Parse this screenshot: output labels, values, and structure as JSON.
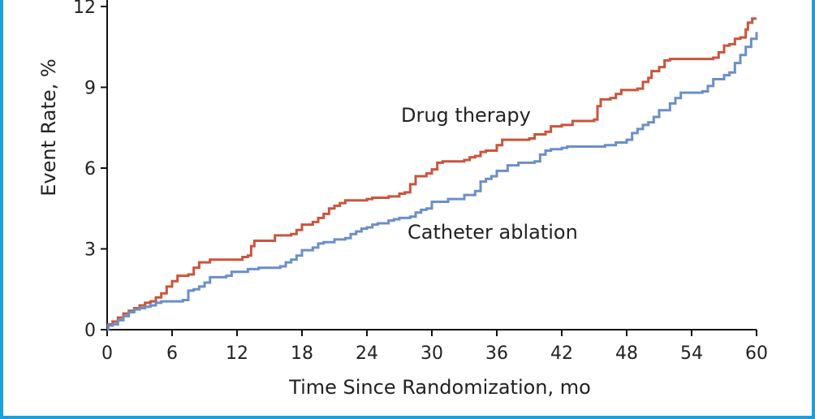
{
  "chart_data": {
    "type": "line",
    "xlabel": "Time Since Randomization, mo",
    "ylabel": "Event Rate, %",
    "xlim": [
      0,
      60
    ],
    "ylim": [
      0,
      12
    ],
    "x_ticks": [
      0,
      6,
      12,
      18,
      24,
      30,
      36,
      42,
      48,
      54,
      60
    ],
    "y_ticks": [
      0,
      3,
      6,
      9,
      12
    ],
    "grid": false,
    "series": [
      {
        "name": "Drug therapy",
        "color": "#c8553d",
        "points": [
          [
            0,
            0
          ],
          [
            0.1,
            0.2
          ],
          [
            0.5,
            0.3
          ],
          [
            1,
            0.45
          ],
          [
            1.5,
            0.6
          ],
          [
            2,
            0.7
          ],
          [
            2.5,
            0.8
          ],
          [
            3,
            0.9
          ],
          [
            3.5,
            1.0
          ],
          [
            4,
            1.05
          ],
          [
            4.5,
            1.2
          ],
          [
            5,
            1.35
          ],
          [
            5.5,
            1.6
          ],
          [
            6,
            1.8
          ],
          [
            6.5,
            2.0
          ],
          [
            7.5,
            2.05
          ],
          [
            8,
            2.3
          ],
          [
            8.5,
            2.5
          ],
          [
            9,
            2.5
          ],
          [
            9.5,
            2.6
          ],
          [
            12,
            2.6
          ],
          [
            12.5,
            2.7
          ],
          [
            13,
            2.75
          ],
          [
            13.3,
            3.1
          ],
          [
            13.6,
            3.3
          ],
          [
            15,
            3.3
          ],
          [
            15.5,
            3.5
          ],
          [
            17,
            3.55
          ],
          [
            17.5,
            3.7
          ],
          [
            18,
            3.9
          ],
          [
            19,
            4.0
          ],
          [
            19.5,
            4.15
          ],
          [
            20,
            4.3
          ],
          [
            20.5,
            4.5
          ],
          [
            21,
            4.6
          ],
          [
            21.5,
            4.7
          ],
          [
            22,
            4.8
          ],
          [
            24,
            4.85
          ],
          [
            24.5,
            4.9
          ],
          [
            26,
            4.95
          ],
          [
            27,
            5.05
          ],
          [
            27.5,
            5.1
          ],
          [
            28,
            5.4
          ],
          [
            28.5,
            5.7
          ],
          [
            29.5,
            5.8
          ],
          [
            30,
            5.95
          ],
          [
            30.5,
            6.2
          ],
          [
            31,
            6.25
          ],
          [
            33,
            6.3
          ],
          [
            33.5,
            6.4
          ],
          [
            34,
            6.45
          ],
          [
            34.5,
            6.6
          ],
          [
            35,
            6.65
          ],
          [
            36,
            6.85
          ],
          [
            36.5,
            7.05
          ],
          [
            39,
            7.1
          ],
          [
            39.5,
            7.25
          ],
          [
            40,
            7.25
          ],
          [
            40.5,
            7.35
          ],
          [
            41,
            7.55
          ],
          [
            42,
            7.6
          ],
          [
            43,
            7.75
          ],
          [
            44,
            7.75
          ],
          [
            45,
            7.8
          ],
          [
            45.3,
            8.3
          ],
          [
            45.6,
            8.55
          ],
          [
            46.5,
            8.6
          ],
          [
            47,
            8.75
          ],
          [
            47.5,
            8.9
          ],
          [
            49,
            8.95
          ],
          [
            49.5,
            9.2
          ],
          [
            50,
            9.35
          ],
          [
            50.3,
            9.6
          ],
          [
            51,
            9.75
          ],
          [
            51.5,
            10.0
          ],
          [
            52,
            10.05
          ],
          [
            56,
            10.1
          ],
          [
            56.5,
            10.3
          ],
          [
            57,
            10.55
          ],
          [
            57.5,
            10.6
          ],
          [
            58,
            10.8
          ],
          [
            58.5,
            10.85
          ],
          [
            59,
            11.15
          ],
          [
            59.2,
            11.4
          ],
          [
            59.6,
            11.55
          ],
          [
            60,
            11.55
          ]
        ]
      },
      {
        "name": "Catheter ablation",
        "color": "#6b8fc7",
        "points": [
          [
            0,
            0
          ],
          [
            0.1,
            0.15
          ],
          [
            0.5,
            0.2
          ],
          [
            1,
            0.35
          ],
          [
            1.5,
            0.5
          ],
          [
            2,
            0.65
          ],
          [
            2.5,
            0.75
          ],
          [
            3,
            0.8
          ],
          [
            3.5,
            0.85
          ],
          [
            4,
            0.9
          ],
          [
            4.5,
            1.0
          ],
          [
            5,
            1.05
          ],
          [
            5.5,
            1.05
          ],
          [
            7,
            1.1
          ],
          [
            7.5,
            1.45
          ],
          [
            8,
            1.5
          ],
          [
            8.5,
            1.6
          ],
          [
            9,
            1.75
          ],
          [
            9.5,
            1.95
          ],
          [
            11,
            2.0
          ],
          [
            11.5,
            2.15
          ],
          [
            13,
            2.25
          ],
          [
            14,
            2.3
          ],
          [
            16,
            2.35
          ],
          [
            16.5,
            2.5
          ],
          [
            17,
            2.6
          ],
          [
            17.5,
            2.75
          ],
          [
            18,
            2.95
          ],
          [
            19,
            3.05
          ],
          [
            19.5,
            3.2
          ],
          [
            20,
            3.25
          ],
          [
            21,
            3.35
          ],
          [
            22,
            3.4
          ],
          [
            22.5,
            3.55
          ],
          [
            23,
            3.65
          ],
          [
            23.5,
            3.75
          ],
          [
            24,
            3.8
          ],
          [
            24.5,
            3.9
          ],
          [
            25,
            3.95
          ],
          [
            26,
            4.05
          ],
          [
            26.5,
            4.1
          ],
          [
            27,
            4.15
          ],
          [
            28,
            4.2
          ],
          [
            28.5,
            4.35
          ],
          [
            29,
            4.45
          ],
          [
            29.5,
            4.5
          ],
          [
            30,
            4.75
          ],
          [
            31,
            4.75
          ],
          [
            31.5,
            4.85
          ],
          [
            33,
            5.0
          ],
          [
            34,
            5.15
          ],
          [
            34.5,
            5.5
          ],
          [
            35,
            5.6
          ],
          [
            35.5,
            5.7
          ],
          [
            36,
            5.9
          ],
          [
            37,
            6.1
          ],
          [
            38,
            6.2
          ],
          [
            39.5,
            6.25
          ],
          [
            40,
            6.5
          ],
          [
            40.5,
            6.65
          ],
          [
            41,
            6.7
          ],
          [
            42,
            6.75
          ],
          [
            42.5,
            6.8
          ],
          [
            46,
            6.85
          ],
          [
            47,
            6.95
          ],
          [
            48,
            7.05
          ],
          [
            48.5,
            7.3
          ],
          [
            49,
            7.45
          ],
          [
            49.5,
            7.6
          ],
          [
            50,
            7.7
          ],
          [
            50.5,
            7.9
          ],
          [
            51,
            8.15
          ],
          [
            52,
            8.4
          ],
          [
            52.5,
            8.6
          ],
          [
            53,
            8.8
          ],
          [
            55,
            8.85
          ],
          [
            55.5,
            9.05
          ],
          [
            56,
            9.3
          ],
          [
            57,
            9.45
          ],
          [
            57.5,
            9.55
          ],
          [
            58,
            9.9
          ],
          [
            58.5,
            10.2
          ],
          [
            59,
            10.5
          ],
          [
            59.5,
            10.8
          ],
          [
            60,
            11.05
          ]
        ]
      }
    ]
  }
}
